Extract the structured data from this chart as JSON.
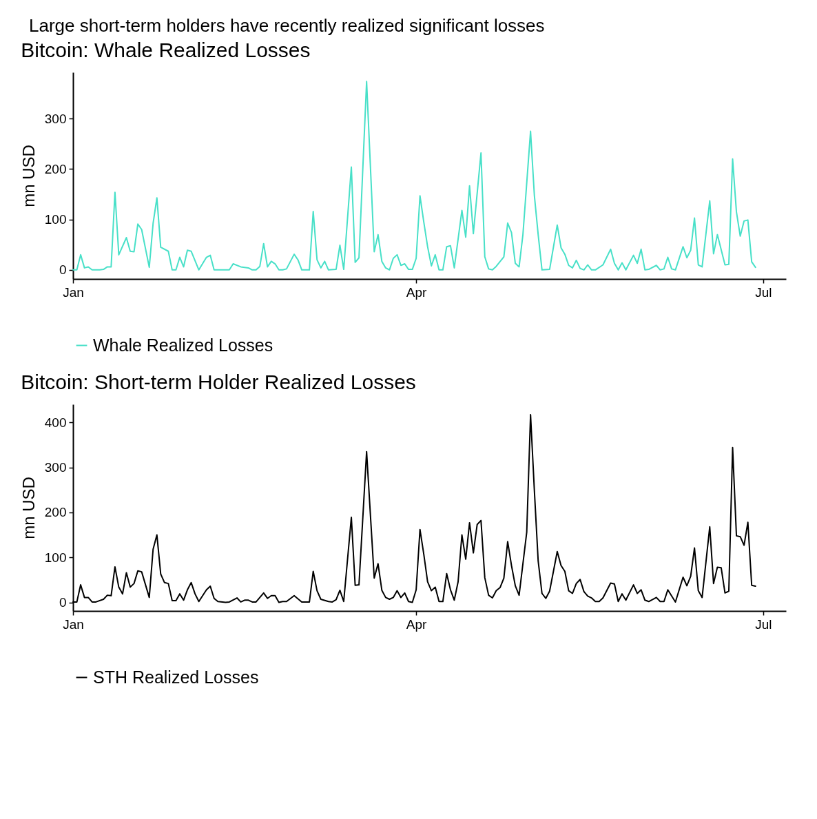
{
  "chart_data": [
    {
      "type": "line",
      "title": "Bitcoin: Whale Realized Losses",
      "ylabel": "mn USD",
      "annotations": [
        "Large short-term holders have recently realized significant losses"
      ],
      "x": [
        "--01-01",
        "--01-02",
        "--01-03",
        "--01-04",
        "--01-05",
        "--01-06",
        "--01-08",
        "--01-09",
        "--01-10",
        "--01-11",
        "--01-12",
        "--01-13",
        "--01-15",
        "--01-16",
        "--01-17",
        "--01-18",
        "--01-19",
        "--01-21",
        "--01-22",
        "--01-23",
        "--01-24",
        "--01-26",
        "--01-27",
        "--01-28",
        "--01-29",
        "--01-30",
        "--01-31",
        "--02-01",
        "--02-03",
        "--02-05",
        "--02-06",
        "--02-07",
        "--02-11",
        "--02-12",
        "--02-14",
        "--02-16",
        "--02-17",
        "--02-18",
        "--02-19",
        "--02-20",
        "--02-21",
        "--02-22",
        "--02-23",
        "--02-24",
        "--02-25",
        "--02-26",
        "--02-28",
        "--03-01",
        "--03-02",
        "--03-04",
        "--03-05",
        "--03-06",
        "--03-07",
        "--03-08",
        "--03-09",
        "--03-11",
        "--03-12",
        "--03-13",
        "--03-15",
        "--03-16",
        "--03-17",
        "--03-18",
        "--03-19",
        "--03-21",
        "--03-22",
        "--03-23",
        "--03-24",
        "--03-25",
        "--03-26",
        "--03-27",
        "--03-28",
        "--03-29",
        "--03-30",
        "--03-31",
        "--04-01",
        "--04-02",
        "--04-03",
        "--04-04",
        "--04-05",
        "--04-06",
        "--04-07",
        "--04-08",
        "--04-09",
        "--04-10",
        "--04-11",
        "--04-13",
        "--04-14",
        "--04-15",
        "--04-16",
        "--04-18",
        "--04-19",
        "--04-20",
        "--04-21",
        "--04-22",
        "--04-24",
        "--04-25",
        "--04-26",
        "--04-27",
        "--04-28",
        "--04-29",
        "--05-01",
        "--05-02",
        "--05-03",
        "--05-04",
        "--05-06",
        "--05-08",
        "--05-09",
        "--05-10",
        "--05-11",
        "--05-12",
        "--05-13",
        "--05-14",
        "--05-15",
        "--05-16",
        "--05-17",
        "--05-18",
        "--05-20",
        "--05-22",
        "--05-23",
        "--05-24",
        "--05-25",
        "--05-26",
        "--05-28",
        "--05-29",
        "--05-30",
        "--05-31",
        "--06-01",
        "--06-03",
        "--06-04",
        "--06-05",
        "--06-06",
        "--06-07",
        "--06-08",
        "--06-10",
        "--06-11",
        "--06-12",
        "--06-13",
        "--06-14",
        "--06-15",
        "--06-17",
        "--06-18",
        "--06-19",
        "--06-21",
        "--06-22",
        "--06-23",
        "--06-24",
        "--06-25",
        "--06-26",
        "--06-27",
        "--06-28",
        "--06-29"
      ],
      "series": [
        {
          "name": "Whale Realized Losses",
          "color": "#48e0c8",
          "values": [
            0,
            0,
            30,
            4,
            6,
            0,
            0,
            1,
            6,
            6,
            154,
            30,
            64,
            37,
            36,
            91,
            80,
            5,
            92,
            143,
            45,
            37,
            0,
            0,
            25,
            6,
            39,
            37,
            0,
            25,
            29,
            0,
            0,
            12,
            6,
            4,
            0,
            0,
            7,
            52,
            6,
            17,
            12,
            0,
            0,
            2,
            31,
            20,
            0,
            0,
            116,
            20,
            4,
            17,
            0,
            1,
            49,
            1,
            204,
            15,
            24,
            200,
            374,
            36,
            70,
            17,
            4,
            0,
            23,
            30,
            9,
            12,
            1,
            1,
            23,
            147,
            95,
            46,
            8,
            30,
            0,
            0,
            46,
            48,
            4,
            118,
            65,
            167,
            72,
            232,
            26,
            2,
            0,
            7,
            26,
            93,
            74,
            13,
            6,
            70,
            275,
            148,
            70,
            0,
            1,
            89,
            44,
            31,
            9,
            4,
            19,
            3,
            0,
            10,
            0,
            0,
            10,
            41,
            13,
            0,
            14,
            0,
            29,
            13,
            41,
            0,
            1,
            9,
            0,
            2,
            25,
            2,
            0,
            46,
            24,
            39,
            103,
            10,
            6,
            137,
            32,
            70,
            10,
            11,
            220,
            115,
            67,
            97,
            99,
            16,
            5
          ]
        }
      ],
      "xlim": [
        "--01-01",
        "--07-07"
      ],
      "xticks": [
        {
          "value": "--01-01",
          "label": "Jan"
        },
        {
          "value": "--04-01",
          "label": "Apr"
        },
        {
          "value": "--07-01",
          "label": "Jul"
        }
      ],
      "ylim": [
        -18,
        392
      ],
      "yticks": [
        0,
        100,
        200,
        300
      ],
      "grid": false,
      "legend": "bottom"
    },
    {
      "type": "line",
      "title": "Bitcoin: Short-term Holder Realized Losses",
      "ylabel": "mn USD",
      "x": [
        "--01-01",
        "--01-02",
        "--01-03",
        "--01-04",
        "--01-05",
        "--01-06",
        "--01-07",
        "--01-09",
        "--01-10",
        "--01-11",
        "--01-12",
        "--01-13",
        "--01-14",
        "--01-15",
        "--01-16",
        "--01-17",
        "--01-18",
        "--01-19",
        "--01-21",
        "--01-22",
        "--01-23",
        "--01-24",
        "--01-25",
        "--01-26",
        "--01-27",
        "--01-28",
        "--01-29",
        "--01-30",
        "--01-31",
        "--02-01",
        "--02-02",
        "--02-03",
        "--02-05",
        "--02-06",
        "--02-07",
        "--02-08",
        "--02-10",
        "--02-11",
        "--02-13",
        "--02-14",
        "--02-15",
        "--02-16",
        "--02-17",
        "--02-18",
        "--02-20",
        "--02-21",
        "--02-22",
        "--02-23",
        "--02-24",
        "--02-25",
        "--02-26",
        "--02-28",
        "--03-02",
        "--03-04",
        "--03-05",
        "--03-06",
        "--03-07",
        "--03-09",
        "--03-10",
        "--03-11",
        "--03-12",
        "--03-13",
        "--03-15",
        "--03-16",
        "--03-17",
        "--03-19",
        "--03-21",
        "--03-22",
        "--03-23",
        "--03-24",
        "--03-25",
        "--03-26",
        "--03-27",
        "--03-28",
        "--03-29",
        "--03-30",
        "--03-31",
        "--04-01",
        "--04-02",
        "--04-03",
        "--04-04",
        "--04-05",
        "--04-06",
        "--04-07",
        "--04-08",
        "--04-09",
        "--04-10",
        "--04-11",
        "--04-12",
        "--04-13",
        "--04-14",
        "--04-15",
        "--04-16",
        "--04-17",
        "--04-18",
        "--04-19",
        "--04-20",
        "--04-21",
        "--04-22",
        "--04-23",
        "--04-24",
        "--04-25",
        "--04-26",
        "--04-27",
        "--04-28",
        "--04-30",
        "--05-01",
        "--05-02",
        "--05-03",
        "--05-04",
        "--05-05",
        "--05-06",
        "--05-08",
        "--05-09",
        "--05-10",
        "--05-11",
        "--05-12",
        "--05-13",
        "--05-14",
        "--05-15",
        "--05-16",
        "--05-17",
        "--05-18",
        "--05-19",
        "--05-20",
        "--05-22",
        "--05-23",
        "--05-24",
        "--05-25",
        "--05-26",
        "--05-28",
        "--05-29",
        "--05-30",
        "--05-31",
        "--06-01",
        "--06-03",
        "--06-04",
        "--06-05",
        "--06-06",
        "--06-08",
        "--06-10",
        "--06-11",
        "--06-12",
        "--06-13",
        "--06-14",
        "--06-15",
        "--06-17",
        "--06-18",
        "--06-19",
        "--06-20",
        "--06-21",
        "--06-22",
        "--06-23",
        "--06-24",
        "--06-25",
        "--06-26",
        "--06-27",
        "--06-28",
        "--06-29"
      ],
      "series": [
        {
          "name": "STH Realized Losses",
          "color": "#000000",
          "values": [
            1,
            1,
            39,
            11,
            11,
            1,
            1,
            7,
            16,
            15,
            79,
            34,
            19,
            66,
            34,
            42,
            70,
            68,
            11,
            118,
            150,
            63,
            44,
            42,
            4,
            4,
            19,
            5,
            28,
            44,
            19,
            2,
            28,
            36,
            9,
            2,
            0,
            1,
            10,
            1,
            5,
            5,
            1,
            1,
            21,
            9,
            15,
            15,
            0,
            2,
            2,
            15,
            1,
            1,
            69,
            26,
            7,
            2,
            1,
            6,
            27,
            2,
            189,
            38,
            39,
            335,
            54,
            86,
            27,
            11,
            7,
            11,
            26,
            11,
            21,
            2,
            0,
            28,
            162,
            107,
            46,
            26,
            34,
            2,
            2,
            64,
            28,
            5,
            46,
            150,
            96,
            177,
            110,
            173,
            182,
            55,
            16,
            10,
            26,
            33,
            54,
            135,
            82,
            37,
            16,
            156,
            417,
            249,
            92,
            20,
            9,
            25,
            113,
            82,
            69,
            26,
            20,
            42,
            51,
            24,
            14,
            10,
            2,
            2,
            10,
            43,
            41,
            2,
            19,
            5,
            39,
            20,
            28,
            5,
            2,
            11,
            2,
            2,
            28,
            1,
            56,
            37,
            58,
            121,
            26,
            11,
            168,
            42,
            78,
            77,
            21,
            25,
            344,
            148,
            146,
            127,
            178,
            38,
            36
          ]
        }
      ],
      "xlim": [
        "--01-01",
        "--07-07"
      ],
      "xticks": [
        {
          "value": "--01-01",
          "label": "Jan"
        },
        {
          "value": "--04-01",
          "label": "Apr"
        },
        {
          "value": "--07-01",
          "label": "Jul"
        }
      ],
      "ylim": [
        -19,
        440
      ],
      "yticks": [
        0,
        100,
        200,
        300,
        400
      ],
      "grid": false,
      "legend": "bottom"
    }
  ]
}
